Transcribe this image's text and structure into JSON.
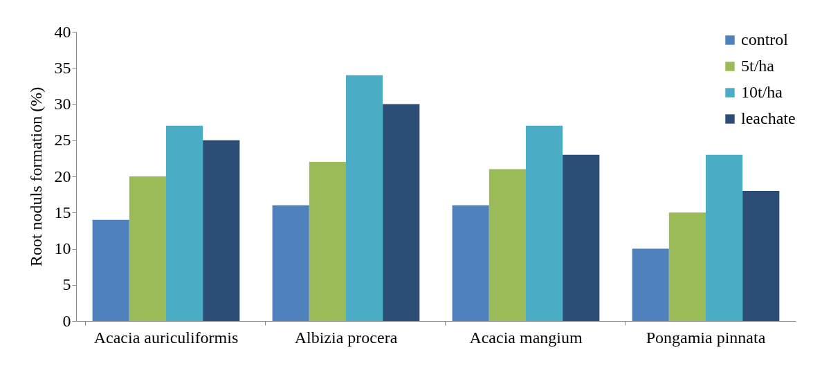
{
  "chart_data": {
    "type": "bar",
    "ylabel": "Root noduls formation (%)",
    "categories": [
      "Acacia auriculiformis",
      "Albizia procera",
      "Acacia mangium",
      "Pongamia pinnata"
    ],
    "series": [
      {
        "name": "control",
        "color": "#4f81bd",
        "values": [
          14,
          16,
          16,
          10
        ]
      },
      {
        "name": "5t/ha",
        "color": "#9bbb59",
        "values": [
          20,
          22,
          21,
          15
        ]
      },
      {
        "name": "10t/ha",
        "color": "#4bacc6",
        "values": [
          27,
          34,
          27,
          23
        ]
      },
      {
        "name": "leachate",
        "color": "#2c4d75",
        "values": [
          25,
          30,
          23,
          18
        ]
      }
    ],
    "ylim": [
      0,
      40
    ],
    "yticks": [
      0,
      5,
      10,
      15,
      20,
      25,
      30,
      35,
      40
    ],
    "grid": false,
    "legend": "top right"
  }
}
